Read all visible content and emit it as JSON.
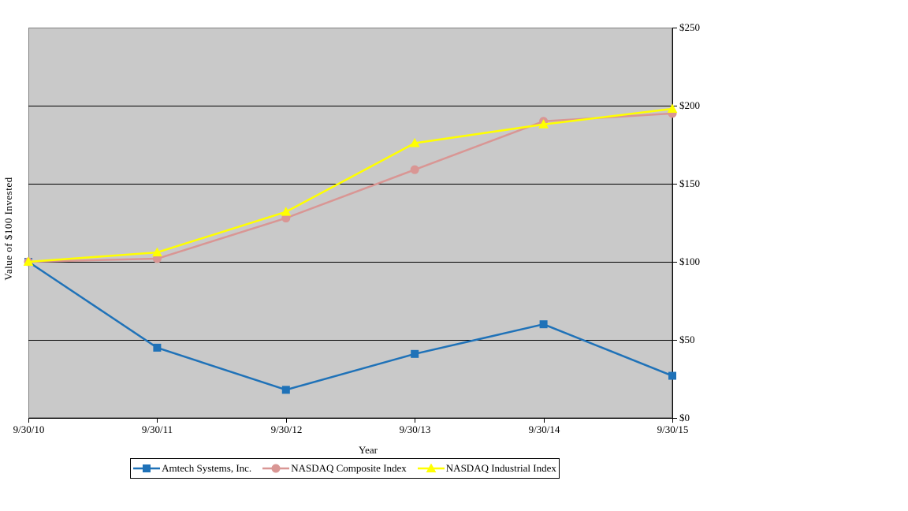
{
  "chart_data": {
    "type": "line",
    "title": "",
    "xlabel": "Year",
    "ylabel": "Value of $100 Invested",
    "categories": [
      "9/30/10",
      "9/30/11",
      "9/30/12",
      "9/30/13",
      "9/30/14",
      "9/30/15"
    ],
    "series": [
      {
        "name": "Amtech Systems, Inc.",
        "color": "#1F72B8",
        "marker": "square",
        "values": [
          100,
          45,
          18,
          41,
          60,
          27
        ]
      },
      {
        "name": "NASDAQ Composite Index",
        "color": "#D99694",
        "marker": "circle",
        "values": [
          100,
          102,
          128,
          159,
          190,
          195
        ]
      },
      {
        "name": "NASDAQ Industrial Index",
        "color": "#FFFF00",
        "marker": "triangle",
        "values": [
          100,
          106,
          132,
          176,
          188,
          198
        ]
      }
    ],
    "ylim": [
      0,
      250
    ],
    "y_tick_step": 50,
    "y_tick_labels": [
      "$0",
      "$50",
      "$100",
      "$150",
      "$200",
      "$250"
    ],
    "y_axis_side": "right",
    "grid": true,
    "legend_position": "bottom",
    "colors": {
      "plot_background": "#C9C9C9",
      "plot_border": "#808080",
      "gridline": "#000000",
      "axis": "#000000",
      "legend_border": "#000000",
      "text": "#000000"
    }
  }
}
